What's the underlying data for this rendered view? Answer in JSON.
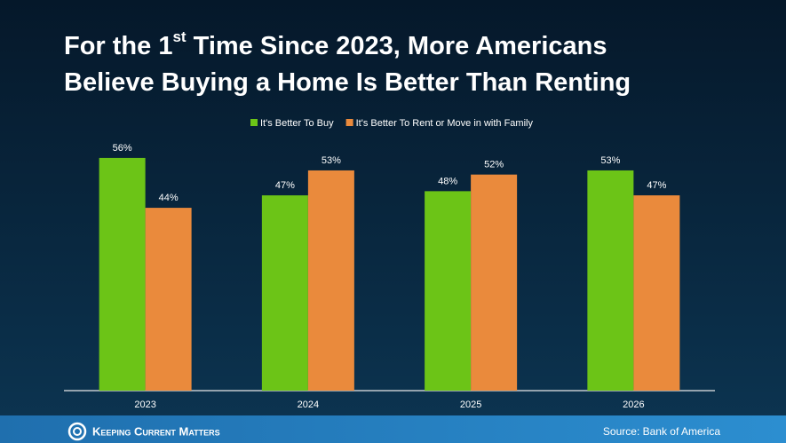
{
  "chart_data": {
    "type": "bar",
    "title": [
      [
        "For the 1",
        "st",
        " Time Since 2023, More Americans"
      ],
      [
        "Believe Buying a Home Is Better Than Renting"
      ]
    ],
    "categories": [
      "2023",
      "2024",
      "2025",
      "2026"
    ],
    "series": [
      {
        "name": "It's Better To Buy",
        "color": "#6cc417",
        "values": [
          56,
          47,
          48,
          53
        ],
        "value_labels": [
          "56%",
          "47%",
          "48%",
          "53%"
        ]
      },
      {
        "name": "It's Better To Rent or Move in with Family",
        "color": "#ea8a3c",
        "values": [
          44,
          53,
          52,
          47
        ],
        "value_labels": [
          "44%",
          "53%",
          "52%",
          "47%"
        ]
      }
    ],
    "source": "Source: Bank of America",
    "brand": "Keeping Current Matters"
  }
}
